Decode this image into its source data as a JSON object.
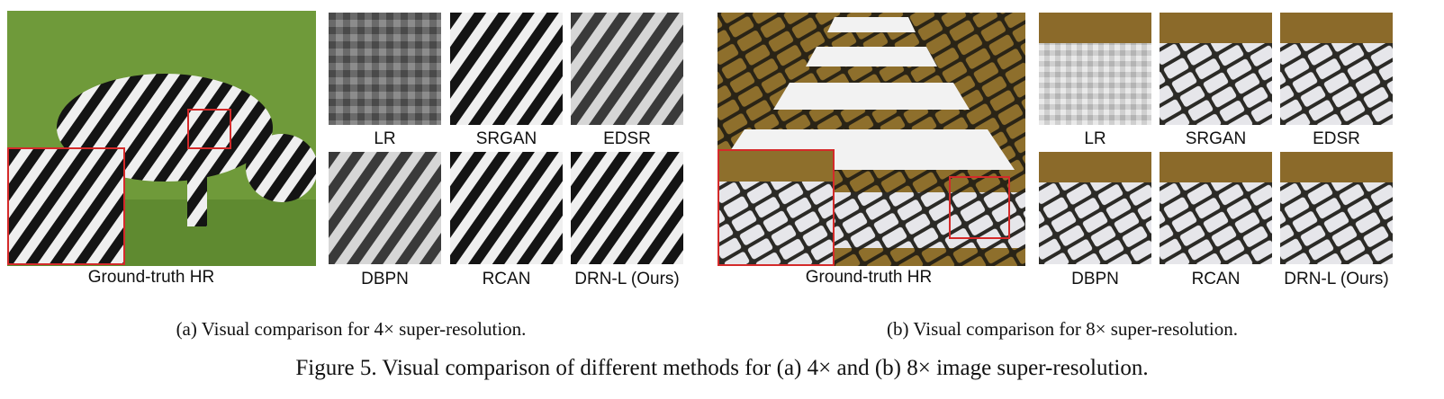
{
  "panel_a": {
    "hr_label": "Ground-truth HR",
    "method_labels": [
      "LR",
      "SRGAN",
      "EDSR",
      "DBPN",
      "RCAN",
      "DRN-L (Ours)"
    ],
    "subcaption": "(a)  Visual comparison for 4× super-resolution."
  },
  "panel_b": {
    "hr_label": "Ground-truth HR",
    "method_labels": [
      "LR",
      "SRGAN",
      "EDSR",
      "DBPN",
      "RCAN",
      "DRN-L (Ours)"
    ],
    "subcaption": "(b)  Visual comparison for 8× super-resolution."
  },
  "figure_caption": "Figure 5. Visual comparison of different methods for (a) 4× and (b) 8× image super-resolution.",
  "colors": {
    "highlight_box": "#d42a2a",
    "grass": "#6f9a3a",
    "pavement": "#8a6a2a",
    "stone": "#e6e6ea"
  }
}
